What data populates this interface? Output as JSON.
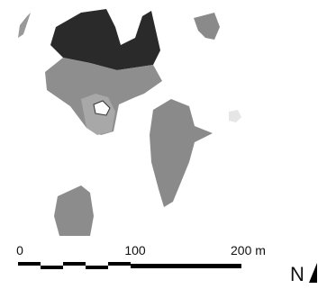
{
  "scale_bar": {
    "labels": [
      "0",
      "100",
      "200 m"
    ]
  },
  "north_arrow": {
    "label": "N"
  }
}
